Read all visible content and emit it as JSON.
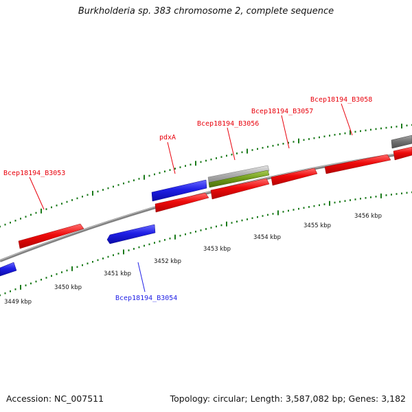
{
  "title": "Burkholderia sp. 383 chromosome 2, complete sequence",
  "footer": {
    "accession": "Accession: NC_007511",
    "summary": "Topology: circular; Length: 3,587,082 bp; Genes: 3,182"
  },
  "colors": {
    "forward_gene": "#e8000b",
    "reverse_gene": "#1f1fe6",
    "other_feature_green": "#6e9a18",
    "other_feature_gray": "#a9a9a9",
    "dark_feature_gray": "#6f6f6f",
    "backbone": "#808080",
    "tick": "#1a7a1a"
  },
  "gene_labels": [
    {
      "text": "Bcep18194_B3053",
      "strand": "forward"
    },
    {
      "text": "pdxA",
      "strand": "forward"
    },
    {
      "text": "Bcep18194_B3056",
      "strand": "forward"
    },
    {
      "text": "Bcep18194_B3057",
      "strand": "forward"
    },
    {
      "text": "Bcep18194_B3058",
      "strand": "forward"
    },
    {
      "text": "Bcep18194_B3054",
      "strand": "reverse"
    }
  ],
  "kbp_labels": [
    "3449 kbp",
    "3450 kbp",
    "3451 kbp",
    "3452 kbp",
    "3453 kbp",
    "3454 kbp",
    "3455 kbp",
    "3456 kbp"
  ]
}
